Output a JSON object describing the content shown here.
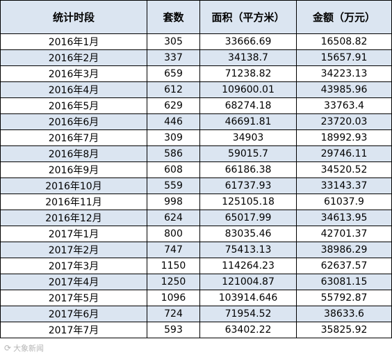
{
  "header": {
    "period": "统计时段",
    "units": "套数",
    "area": "面积（平方米）",
    "amount": "金额（万元）"
  },
  "rows": [
    {
      "period": "2016年1月",
      "units": "305",
      "area": "33666.69",
      "amount": "16508.82"
    },
    {
      "period": "2016年2月",
      "units": "337",
      "area": "34138.7",
      "amount": "15657.91"
    },
    {
      "period": "2016年3月",
      "units": "659",
      "area": "71238.82",
      "amount": "34223.13"
    },
    {
      "period": "2016年4月",
      "units": "612",
      "area": "109600.01",
      "amount": "43985.96"
    },
    {
      "period": "2016年5月",
      "units": "629",
      "area": "68274.18",
      "amount": "33763.4"
    },
    {
      "period": "2016年6月",
      "units": "446",
      "area": "46691.81",
      "amount": "23720.03"
    },
    {
      "period": "2016年7月",
      "units": "309",
      "area": "34903",
      "amount": "18992.93"
    },
    {
      "period": "2016年8月",
      "units": "586",
      "area": "59015.7",
      "amount": "29746.11"
    },
    {
      "period": "2016年9月",
      "units": "608",
      "area": "66186.38",
      "amount": "34520.52"
    },
    {
      "period": "2016年10月",
      "units": "559",
      "area": "61737.93",
      "amount": "33143.37"
    },
    {
      "period": "2016年11月",
      "units": "998",
      "area": "125105.18",
      "amount": "61037.9"
    },
    {
      "period": "2016年12月",
      "units": "624",
      "area": "65017.99",
      "amount": "34613.95"
    },
    {
      "period": "2017年1月",
      "units": "800",
      "area": "83035.46",
      "amount": "42701.37"
    },
    {
      "period": "2017年2月",
      "units": "747",
      "area": "75413.13",
      "amount": "38986.29"
    },
    {
      "period": "2017年3月",
      "units": "1150",
      "area": "114264.23",
      "amount": "62637.57"
    },
    {
      "period": "2017年4月",
      "units": "1250",
      "area": "121004.87",
      "amount": "63081.15"
    },
    {
      "period": "2017年5月",
      "units": "1096",
      "area": "103914.646",
      "amount": "55792.87"
    },
    {
      "period": "2017年6月",
      "units": "724",
      "area": "71954.52",
      "amount": "38633.6"
    },
    {
      "period": "2017年7月",
      "units": "593",
      "area": "63402.22",
      "amount": "35825.92"
    }
  ],
  "watermark": {
    "icon": "share-icon",
    "text": "大象新闻"
  },
  "colors": {
    "row_shade": "#dbe5f1",
    "border": "#000000"
  }
}
